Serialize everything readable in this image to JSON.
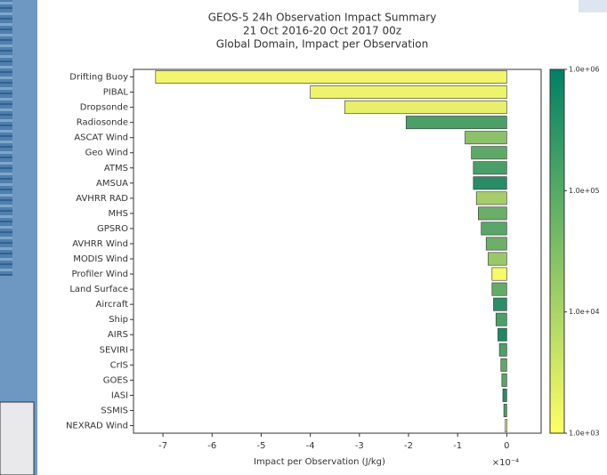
{
  "chart_data": {
    "type": "barh",
    "title": [
      "GEOS-5 24h Observation Impact Summary",
      "21 Oct 2016-20 Oct 2017 00z",
      "Global Domain, Impact per Observation"
    ],
    "xlabel": "Impact per Observation (J/kg)",
    "offset_text": "×10⁻⁴",
    "categories": [
      "Drifting Buoy",
      "PIBAL",
      "Dropsonde",
      "Radiosonde",
      "ASCAT Wind",
      "Geo Wind",
      "ATMS",
      "AMSUA",
      "AVHRR RAD",
      "MHS",
      "GPSRO",
      "AVHRR Wind",
      "MODIS Wind",
      "Profiler Wind",
      "Land Surface",
      "Aircraft",
      "Ship",
      "AIRS",
      "SEVIRI",
      "CrIS",
      "GOES",
      "IASI",
      "SSMIS",
      "NEXRAD Wind"
    ],
    "values": [
      -7.15,
      -4.0,
      -3.3,
      -2.05,
      -0.85,
      -0.72,
      -0.68,
      -0.68,
      -0.62,
      -0.58,
      -0.52,
      -0.42,
      -0.38,
      -0.3,
      -0.3,
      -0.27,
      -0.22,
      -0.18,
      -0.15,
      -0.12,
      -0.1,
      -0.08,
      -0.06,
      -0.03
    ],
    "colors": [
      "#f2f56e",
      "#eef36c",
      "#e8f06b",
      "#4c9f68",
      "#8cc06b",
      "#5fa968",
      "#4a9e67",
      "#2a8c66",
      "#a6cc6b",
      "#6aae68",
      "#5aa668",
      "#6dae68",
      "#9bc76b",
      "#f7fa68",
      "#65ab68",
      "#2c8d66",
      "#4c9f68",
      "#1f8766",
      "#4e9f67",
      "#5ea768",
      "#5aa668",
      "#2a8c66",
      "#4a9e67",
      "#d8e86a"
    ],
    "xlim": [
      -7.6,
      0.7
    ],
    "xticks": [
      -7,
      -6,
      -5,
      -4,
      -3,
      -2,
      -1,
      0
    ],
    "colorbar": {
      "log": true,
      "lim": [
        1000,
        1000000
      ],
      "cmap": [
        "#ffff66",
        "#008066"
      ],
      "ticks": [
        {
          "value": 1000,
          "label": "1.0e+03"
        },
        {
          "value": 10000,
          "label": "1.0e+04"
        },
        {
          "value": 100000,
          "label": "1.0e+05"
        },
        {
          "value": 1000000,
          "label": "1.0e+06"
        }
      ]
    }
  }
}
